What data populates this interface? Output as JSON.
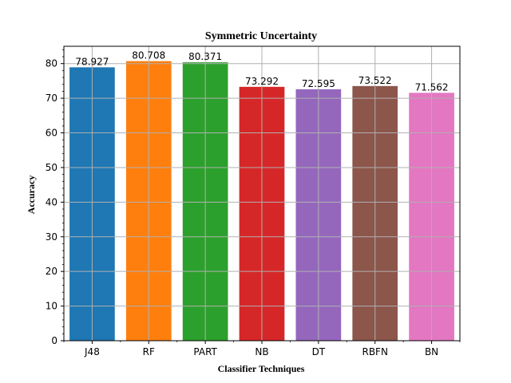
{
  "chart_data": {
    "type": "bar",
    "title": "Symmetric Uncertainty",
    "xlabel": "Classifier Techniques",
    "ylabel": "Accuracy",
    "categories": [
      "J48",
      "RF",
      "PART",
      "NB",
      "DT",
      "RBFN",
      "BN"
    ],
    "values": [
      78.927,
      80.708,
      80.371,
      73.292,
      72.595,
      73.522,
      71.562
    ],
    "value_labels": [
      "78.927",
      "80.708",
      "80.371",
      "73.292",
      "72.595",
      "73.522",
      "71.562"
    ],
    "colors": [
      "#1f77b4",
      "#ff7f0e",
      "#2ca02c",
      "#d62728",
      "#9467bd",
      "#8c564b",
      "#e377c2"
    ],
    "ylim": [
      0,
      85
    ],
    "yticks": [
      0,
      10,
      20,
      30,
      40,
      50,
      60,
      70,
      80
    ],
    "grid": true,
    "legend": "none"
  }
}
